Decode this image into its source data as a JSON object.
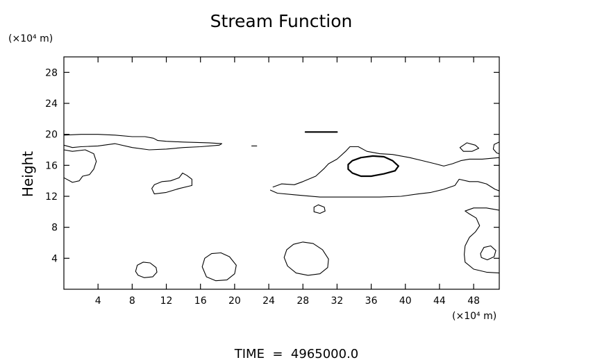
{
  "chart_data": {
    "type": "contour",
    "title": "Stream Function",
    "ylabel": "Height",
    "x_unit": "(×10⁴ m)",
    "y_unit": "(×10⁴ m)",
    "xlim": [
      0,
      51
    ],
    "ylim": [
      0,
      30
    ],
    "x_ticks": [
      4,
      8,
      12,
      16,
      20,
      24,
      28,
      32,
      36,
      40,
      44,
      48
    ],
    "y_ticks": [
      4,
      8,
      12,
      16,
      20,
      24,
      28
    ],
    "footer": "TIME  =  4965000.0",
    "contours": [
      {
        "id": "upper-band-top",
        "weight": "thin",
        "closed": false,
        "points": [
          [
            0,
            19.9
          ],
          [
            2,
            20.0
          ],
          [
            4,
            20.0
          ],
          [
            6,
            19.9
          ],
          [
            8,
            19.7
          ],
          [
            9.5,
            19.7
          ],
          [
            10.5,
            19.5
          ],
          [
            11,
            19.2
          ],
          [
            12,
            19.1
          ],
          [
            14,
            19.0
          ],
          [
            17,
            18.9
          ],
          [
            18.5,
            18.8
          ],
          [
            18.2,
            18.6
          ],
          [
            16,
            18.4
          ],
          [
            14,
            18.3
          ],
          [
            12,
            18.1
          ],
          [
            10,
            18.0
          ],
          [
            8,
            18.3
          ],
          [
            6,
            18.8
          ],
          [
            4,
            18.5
          ],
          [
            2,
            18.4
          ],
          [
            1,
            18.3
          ],
          [
            0,
            18.6
          ]
        ]
      },
      {
        "id": "left-edge-lobe",
        "weight": "thin",
        "closed": false,
        "points": [
          [
            0,
            18.0
          ],
          [
            1,
            17.8
          ],
          [
            2.5,
            18.0
          ],
          [
            3.5,
            17.5
          ],
          [
            3.8,
            16.5
          ],
          [
            3.5,
            15.5
          ],
          [
            3.0,
            14.8
          ],
          [
            2.2,
            14.6
          ],
          [
            1.8,
            14.0
          ],
          [
            1.0,
            13.8
          ],
          [
            0,
            14.4
          ]
        ]
      },
      {
        "id": "mid-left-blob",
        "weight": "thin",
        "closed": true,
        "points": [
          [
            10.3,
            13.0
          ],
          [
            10.6,
            12.3
          ],
          [
            12,
            12.5
          ],
          [
            13.5,
            13.0
          ],
          [
            15,
            13.4
          ],
          [
            15.0,
            14.2
          ],
          [
            14.4,
            14.7
          ],
          [
            13.9,
            15.0
          ],
          [
            13.5,
            14.4
          ],
          [
            12.5,
            14.0
          ],
          [
            11.5,
            13.9
          ],
          [
            10.6,
            13.5
          ]
        ]
      },
      {
        "id": "right-band",
        "weight": "thin",
        "closed": false,
        "points": [
          [
            24.5,
            13.2
          ],
          [
            25.5,
            13.6
          ],
          [
            27,
            13.5
          ],
          [
            28,
            13.9
          ],
          [
            29.5,
            14.6
          ],
          [
            30.5,
            15.6
          ],
          [
            31,
            16.2
          ],
          [
            32,
            16.8
          ],
          [
            33,
            17.8
          ],
          [
            33.5,
            18.4
          ],
          [
            34.5,
            18.4
          ],
          [
            35.5,
            17.8
          ],
          [
            37,
            17.5
          ],
          [
            38.5,
            17.4
          ],
          [
            40.5,
            17.0
          ],
          [
            42,
            16.6
          ],
          [
            43.5,
            16.2
          ],
          [
            44.5,
            15.9
          ],
          [
            45.5,
            16.2
          ],
          [
            46.5,
            16.6
          ],
          [
            47.5,
            16.8
          ],
          [
            49,
            16.8
          ],
          [
            50,
            16.9
          ],
          [
            51,
            17.0
          ],
          [
            51,
            12.7
          ],
          [
            50.5,
            12.9
          ],
          [
            49.5,
            13.6
          ],
          [
            48.5,
            13.9
          ],
          [
            47.5,
            13.9
          ],
          [
            46.3,
            14.2
          ],
          [
            45.8,
            13.4
          ],
          [
            44.5,
            12.9
          ],
          [
            43,
            12.5
          ],
          [
            41.5,
            12.3
          ],
          [
            39.5,
            12.0
          ],
          [
            37,
            11.9
          ],
          [
            34,
            11.9
          ],
          [
            30,
            11.9
          ],
          [
            27,
            12.2
          ],
          [
            25,
            12.4
          ],
          [
            24.2,
            12.8
          ]
        ]
      },
      {
        "id": "lower-right-lobe",
        "weight": "thin",
        "closed": false,
        "points": [
          [
            51,
            10.2
          ],
          [
            49.5,
            10.5
          ],
          [
            48,
            10.5
          ],
          [
            47,
            10.1
          ],
          [
            47.4,
            9.8
          ],
          [
            48.3,
            9.2
          ],
          [
            48.7,
            8.2
          ],
          [
            48.2,
            7.4
          ],
          [
            47.5,
            6.7
          ],
          [
            47,
            5.6
          ],
          [
            46.9,
            4.5
          ],
          [
            47,
            3.5
          ],
          [
            48.0,
            2.6
          ],
          [
            49.5,
            2.2
          ],
          [
            51,
            2.1
          ]
        ]
      },
      {
        "id": "right-edge-small",
        "weight": "thin",
        "closed": false,
        "points": [
          [
            51,
            19.0
          ],
          [
            50.4,
            18.7
          ],
          [
            50.3,
            18.1
          ],
          [
            50.7,
            17.6
          ],
          [
            51,
            17.5
          ]
        ]
      },
      {
        "id": "small-oval-46",
        "weight": "thin",
        "closed": true,
        "points": [
          [
            46.4,
            18.3
          ],
          [
            47.2,
            18.9
          ],
          [
            48.2,
            18.6
          ],
          [
            48.6,
            18.2
          ],
          [
            47.8,
            17.8
          ],
          [
            46.8,
            17.8
          ]
        ]
      },
      {
        "id": "small-oval-30",
        "weight": "thin",
        "closed": true,
        "points": [
          [
            29.3,
            10.6
          ],
          [
            29.8,
            10.9
          ],
          [
            30.5,
            10.6
          ],
          [
            30.6,
            10.1
          ],
          [
            30,
            9.8
          ],
          [
            29.3,
            10.0
          ]
        ]
      },
      {
        "id": "right-edge-loop",
        "weight": "thin",
        "closed": true,
        "points": [
          [
            48.8,
            4.6
          ],
          [
            49.2,
            5.4
          ],
          [
            50.0,
            5.6
          ],
          [
            50.6,
            5.0
          ],
          [
            50.4,
            4.2
          ],
          [
            49.6,
            3.8
          ],
          [
            48.9,
            4.1
          ]
        ]
      },
      {
        "id": "thick-oval",
        "weight": "thick",
        "closed": true,
        "points": [
          [
            33.3,
            16.1
          ],
          [
            33.8,
            16.6
          ],
          [
            34.8,
            17.0
          ],
          [
            36.2,
            17.2
          ],
          [
            37.5,
            17.1
          ],
          [
            38.5,
            16.6
          ],
          [
            39.2,
            15.9
          ],
          [
            38.8,
            15.3
          ],
          [
            37.5,
            14.9
          ],
          [
            36.0,
            14.6
          ],
          [
            34.8,
            14.6
          ],
          [
            33.8,
            15.0
          ],
          [
            33.3,
            15.5
          ]
        ]
      },
      {
        "id": "thick-dash-30",
        "weight": "thick",
        "closed": false,
        "points": [
          [
            28.3,
            20.3
          ],
          [
            32,
            20.3
          ]
        ]
      },
      {
        "id": "thin-dash-22",
        "weight": "thin",
        "closed": false,
        "points": [
          [
            22,
            18.5
          ],
          [
            22.6,
            18.5
          ]
        ]
      },
      {
        "id": "oval-bottom-10",
        "weight": "thin",
        "closed": true,
        "points": [
          [
            8.4,
            2.3
          ],
          [
            8.6,
            3.1
          ],
          [
            9.3,
            3.5
          ],
          [
            10.1,
            3.4
          ],
          [
            10.8,
            2.8
          ],
          [
            10.9,
            2.2
          ],
          [
            10.4,
            1.6
          ],
          [
            9.4,
            1.5
          ],
          [
            8.7,
            1.8
          ]
        ]
      },
      {
        "id": "oval-bottom-18",
        "weight": "thin",
        "closed": true,
        "points": [
          [
            16.2,
            2.9
          ],
          [
            16.5,
            4.0
          ],
          [
            17.3,
            4.6
          ],
          [
            18.4,
            4.7
          ],
          [
            19.4,
            4.2
          ],
          [
            20.2,
            3.1
          ],
          [
            20.0,
            2.0
          ],
          [
            19.1,
            1.2
          ],
          [
            17.8,
            1.1
          ],
          [
            16.7,
            1.6
          ]
        ]
      },
      {
        "id": "oval-bottom-28",
        "weight": "thin",
        "closed": true,
        "points": [
          [
            25.8,
            4.1
          ],
          [
            26.1,
            5.1
          ],
          [
            26.9,
            5.8
          ],
          [
            28.0,
            6.1
          ],
          [
            29.2,
            5.9
          ],
          [
            30.3,
            5.1
          ],
          [
            31.0,
            3.9
          ],
          [
            30.9,
            2.8
          ],
          [
            30.0,
            2.0
          ],
          [
            28.6,
            1.8
          ],
          [
            27.2,
            2.1
          ],
          [
            26.2,
            3.0
          ]
        ]
      }
    ]
  }
}
